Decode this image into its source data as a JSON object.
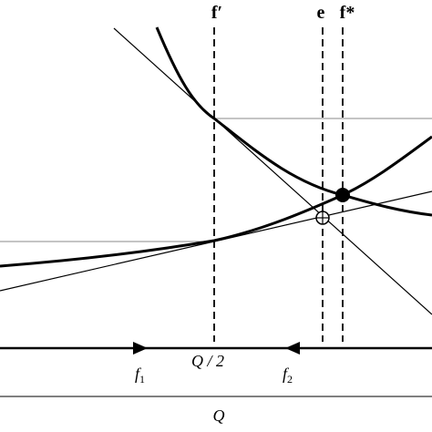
{
  "top_labels": {
    "f_prime": "f′",
    "e": "e",
    "f_star": "f*"
  },
  "axis_labels": {
    "half": "Q / 2",
    "f1": {
      "symbol": "f",
      "subscript": "1"
    },
    "f2": {
      "symbol": "f",
      "subscript": "2"
    },
    "total": "Q"
  }
}
